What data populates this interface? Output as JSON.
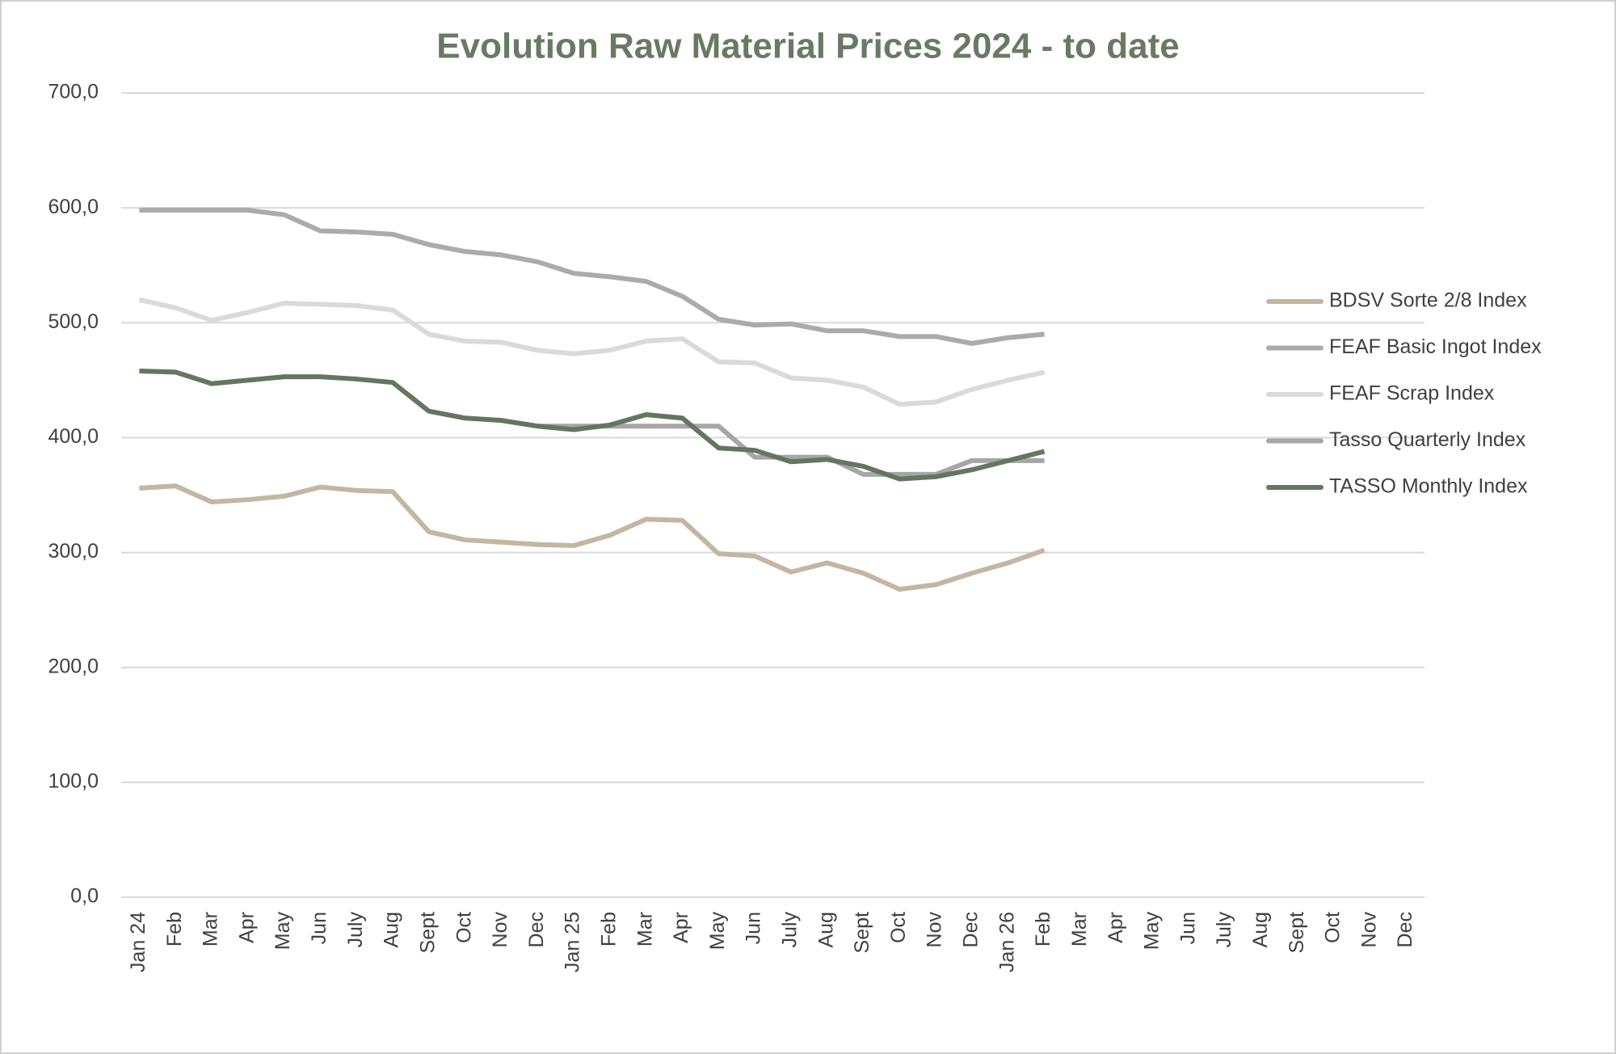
{
  "chart_data": {
    "type": "line",
    "title": "Evolution Raw Material Prices 2024 - to date",
    "categories": [
      "Jan 24",
      "Feb",
      "Mar",
      "Apr",
      "May",
      "Jun",
      "July",
      "Aug",
      "Sept",
      "Oct",
      "Nov",
      "Dec",
      "Jan 25",
      "Feb",
      "Mar",
      "Apr",
      "May",
      "Jun",
      "July",
      "Aug",
      "Sept",
      "Oct",
      "Nov",
      "Dec",
      "Jan 26",
      "Feb",
      "Mar",
      "Apr",
      "May",
      "Jun",
      "July",
      "Aug",
      "Sept",
      "Oct",
      "Nov",
      "Dec"
    ],
    "series": [
      {
        "name": "BDSV Sorte 2/8 Index",
        "color": "#c4b6a2",
        "values": [
          356,
          358,
          344,
          346,
          349,
          357,
          354,
          353,
          318,
          311,
          309,
          307,
          306,
          315,
          329,
          328,
          299,
          297,
          283,
          291,
          282,
          268,
          272,
          282,
          291,
          302,
          null,
          null,
          null,
          null,
          null,
          null,
          null,
          null,
          null,
          null
        ]
      },
      {
        "name": "FEAF Basic Ingot Index",
        "color": "#ababab",
        "values": [
          598,
          598,
          598,
          598,
          594,
          580,
          579,
          577,
          568,
          562,
          559,
          553,
          543,
          540,
          536,
          523,
          503,
          498,
          499,
          493,
          493,
          488,
          488,
          482,
          487,
          490,
          null,
          null,
          null,
          null,
          null,
          null,
          null,
          null,
          null,
          null
        ]
      },
      {
        "name": "FEAF Scrap Index",
        "color": "#dadada",
        "values": [
          520,
          513,
          502,
          509,
          517,
          516,
          515,
          511,
          490,
          484,
          483,
          476,
          473,
          476,
          484,
          486,
          466,
          465,
          452,
          450,
          444,
          429,
          431,
          442,
          450,
          457,
          null,
          null,
          null,
          null,
          null,
          null,
          null,
          null,
          null,
          null
        ]
      },
      {
        "name": "Tasso Quarterly Index",
        "color": "#a6a6a6",
        "values": [
          null,
          null,
          null,
          null,
          null,
          null,
          null,
          null,
          null,
          null,
          null,
          410,
          410,
          410,
          410,
          410,
          410,
          383,
          383,
          383,
          368,
          368,
          368,
          380,
          380,
          380,
          null,
          null,
          null,
          null,
          null,
          null,
          null,
          null,
          null,
          null
        ]
      },
      {
        "name": "TASSO Monthly Index",
        "color": "#64765f",
        "values": [
          458,
          457,
          447,
          450,
          453,
          453,
          451,
          448,
          423,
          417,
          415,
          410,
          407,
          411,
          420,
          417,
          391,
          389,
          379,
          381,
          375,
          364,
          366,
          372,
          380,
          388,
          null,
          null,
          null,
          null,
          null,
          null,
          null,
          null,
          null,
          null
        ]
      }
    ],
    "ylim": [
      0,
      700
    ],
    "yticks": [
      {
        "value": 0,
        "label": "0,0"
      },
      {
        "value": 100,
        "label": "100,0"
      },
      {
        "value": 200,
        "label": "200,0"
      },
      {
        "value": 300,
        "label": "300,0"
      },
      {
        "value": 400,
        "label": "400,0"
      },
      {
        "value": 500,
        "label": "500,0"
      },
      {
        "value": 600,
        "label": "600,0"
      },
      {
        "value": 700,
        "label": "700,0"
      }
    ],
    "grid": true,
    "legend": "right"
  }
}
